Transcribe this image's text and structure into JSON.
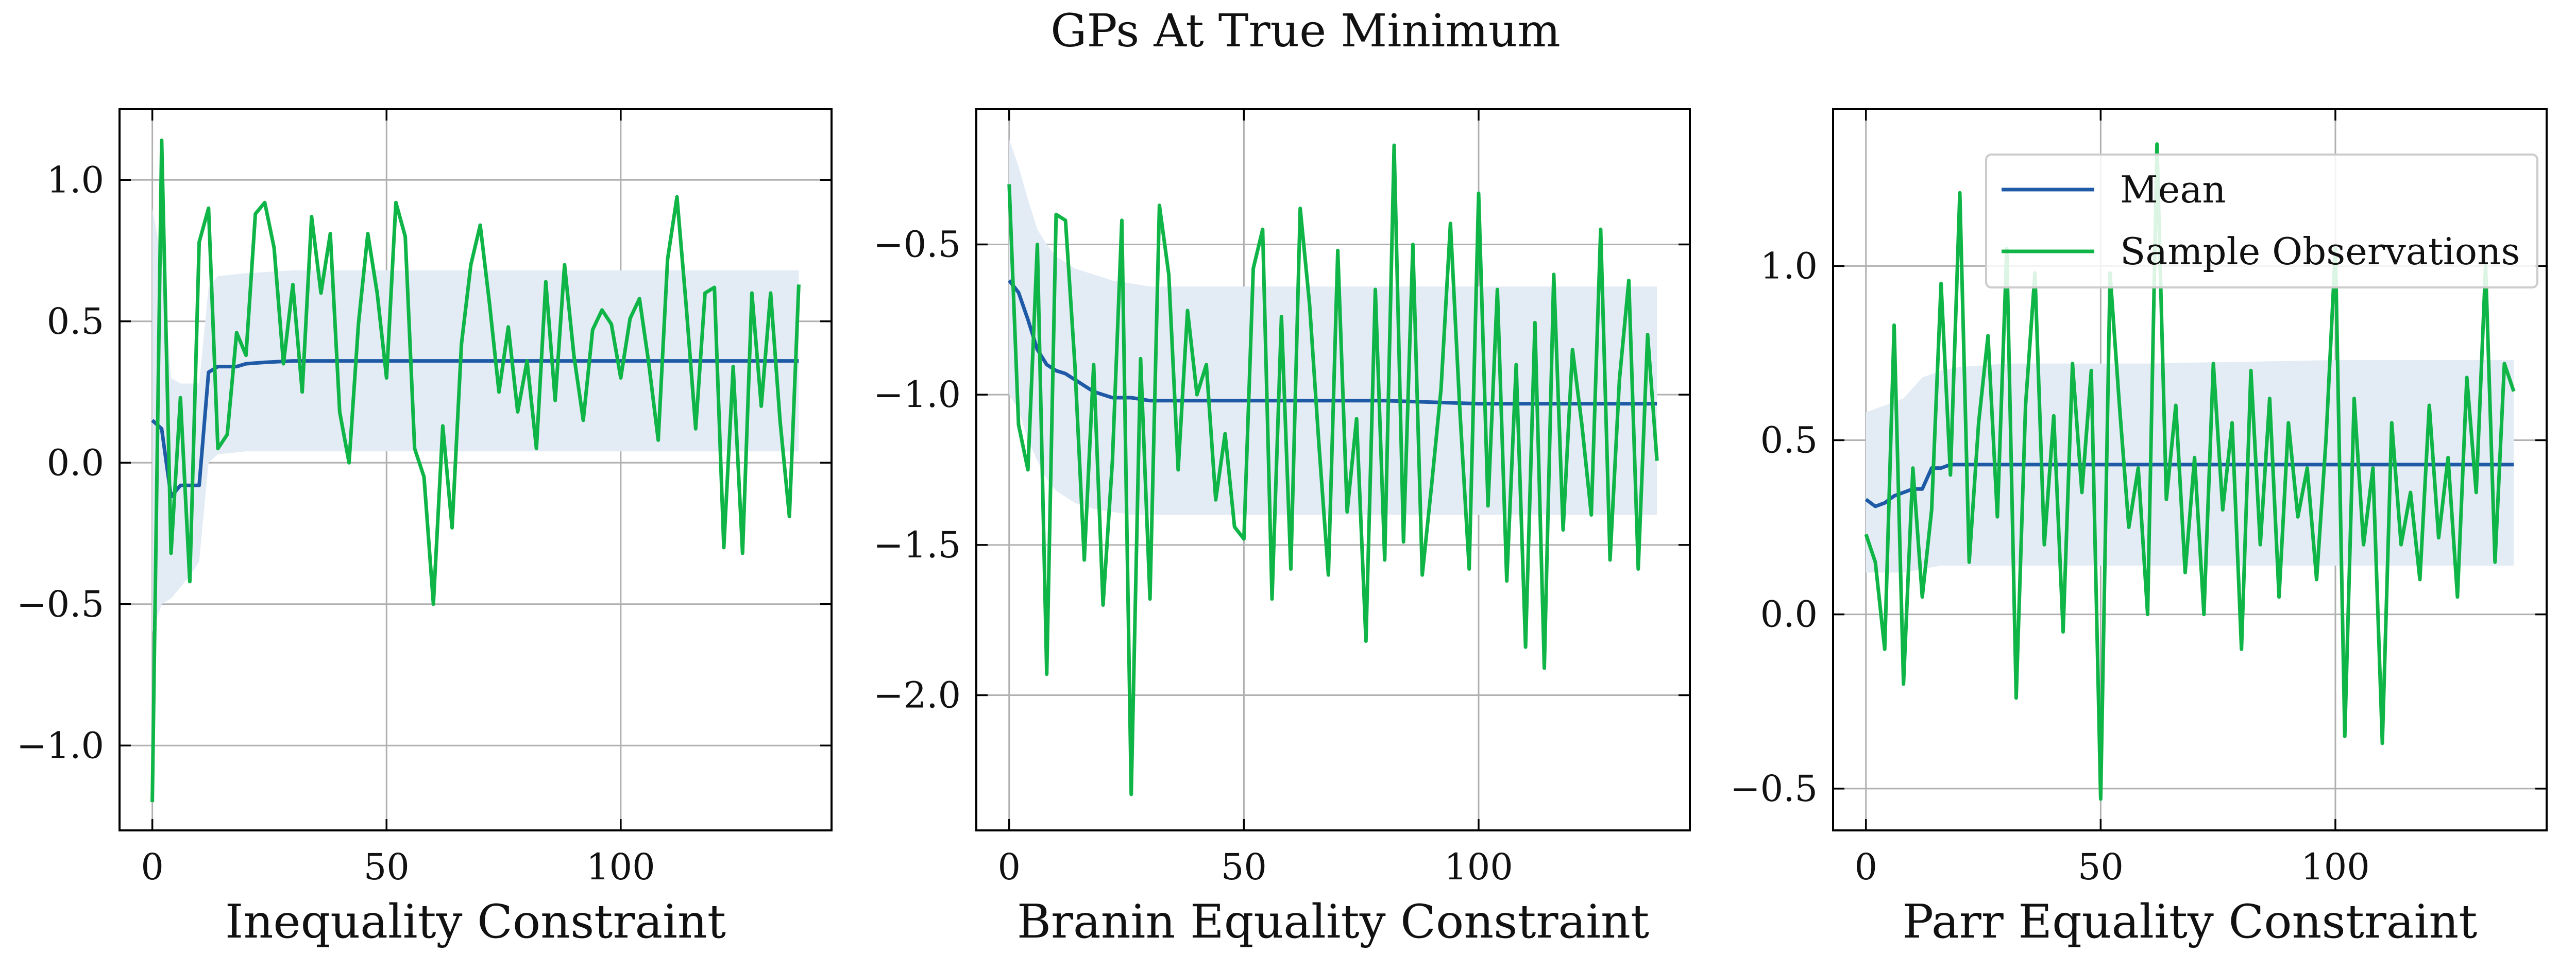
{
  "figure": {
    "title": "GPs At True Minimum"
  },
  "legend": {
    "entries": [
      "Mean",
      "Sample Observations"
    ],
    "placement": "upper-right of third panel"
  },
  "colors": {
    "mean": "#1f5aa6",
    "samples": "#10b547",
    "band": "#e3ecf5",
    "grid": "#b0b0b0",
    "axis": "#000000"
  },
  "chart_data": [
    {
      "type": "line",
      "xlabel": "Inequality Constraint",
      "xlim": [
        -7,
        145
      ],
      "ylim": [
        -1.3,
        1.25
      ],
      "xticks": [
        0,
        50,
        100
      ],
      "yticks": [
        -1.0,
        -0.5,
        0.0,
        0.5,
        1.0
      ],
      "ytick_labels": [
        "−1.0",
        "−0.5",
        "0.0",
        "0.5",
        "1.0"
      ],
      "grid": true,
      "series": [
        {
          "name": "Sample Observations",
          "x": [
            0,
            2,
            4,
            6,
            8,
            10,
            12,
            14,
            16,
            18,
            20,
            22,
            24,
            26,
            28,
            30,
            32,
            34,
            36,
            38,
            40,
            42,
            44,
            46,
            48,
            50,
            52,
            54,
            56,
            58,
            60,
            62,
            64,
            66,
            68,
            70,
            72,
            74,
            76,
            78,
            80,
            82,
            84,
            86,
            88,
            90,
            92,
            94,
            96,
            98,
            100,
            102,
            104,
            106,
            108,
            110,
            112,
            114,
            116,
            118,
            120,
            122,
            124,
            126,
            128,
            130,
            132,
            134,
            136,
            138
          ],
          "y": [
            -1.2,
            1.14,
            -0.32,
            0.23,
            -0.42,
            0.78,
            0.9,
            0.05,
            0.1,
            0.46,
            0.38,
            0.88,
            0.92,
            0.76,
            0.35,
            0.63,
            0.25,
            0.87,
            0.6,
            0.81,
            0.18,
            0.0,
            0.49,
            0.81,
            0.6,
            0.3,
            0.92,
            0.8,
            0.05,
            -0.05,
            -0.5,
            0.13,
            -0.23,
            0.42,
            0.7,
            0.84,
            0.56,
            0.25,
            0.48,
            0.18,
            0.36,
            0.05,
            0.64,
            0.22,
            0.7,
            0.38,
            0.15,
            0.47,
            0.54,
            0.49,
            0.3,
            0.51,
            0.58,
            0.35,
            0.08,
            0.72,
            0.94,
            0.55,
            0.12,
            0.6,
            0.62,
            -0.3,
            0.34,
            -0.32,
            0.6,
            0.2,
            0.6,
            0.15,
            -0.19,
            0.63
          ]
        },
        {
          "name": "Mean",
          "x": [
            0,
            2,
            4,
            6,
            8,
            10,
            12,
            14,
            16,
            18,
            20,
            24,
            30,
            40,
            60,
            80,
            100,
            120,
            138
          ],
          "y": [
            0.15,
            0.12,
            -0.12,
            -0.08,
            -0.08,
            -0.08,
            0.32,
            0.34,
            0.34,
            0.34,
            0.35,
            0.355,
            0.36,
            0.36,
            0.36,
            0.36,
            0.36,
            0.36,
            0.36
          ]
        }
      ],
      "band": {
        "x": [
          0,
          2,
          4,
          6,
          8,
          10,
          12,
          14,
          20,
          30,
          60,
          100,
          138
        ],
        "lower": [
          -0.6,
          -0.5,
          -0.48,
          -0.44,
          -0.4,
          -0.35,
          0.0,
          0.03,
          0.04,
          0.04,
          0.04,
          0.04,
          0.04
        ],
        "upper": [
          0.9,
          0.72,
          0.3,
          0.28,
          0.28,
          0.28,
          0.62,
          0.66,
          0.67,
          0.68,
          0.68,
          0.68,
          0.68
        ]
      }
    },
    {
      "type": "line",
      "xlabel": "Branin Equality Constraint",
      "xlim": [
        -7,
        145
      ],
      "ylim": [
        -2.45,
        -0.05
      ],
      "xticks": [
        0,
        50,
        100
      ],
      "yticks": [
        -2.0,
        -1.5,
        -1.0,
        -0.5
      ],
      "ytick_labels": [
        "−2.0",
        "−1.5",
        "−1.0",
        "−0.5"
      ],
      "grid": true,
      "series": [
        {
          "name": "Sample Observations",
          "x": [
            0,
            2,
            4,
            6,
            8,
            10,
            12,
            14,
            16,
            18,
            20,
            22,
            24,
            26,
            28,
            30,
            32,
            34,
            36,
            38,
            40,
            42,
            44,
            46,
            48,
            50,
            52,
            54,
            56,
            58,
            60,
            62,
            64,
            66,
            68,
            70,
            72,
            74,
            76,
            78,
            80,
            82,
            84,
            86,
            88,
            90,
            92,
            94,
            96,
            98,
            100,
            102,
            104,
            106,
            108,
            110,
            112,
            114,
            116,
            118,
            120,
            122,
            124,
            126,
            128,
            130,
            132,
            134,
            136,
            138
          ],
          "y": [
            -0.3,
            -1.1,
            -1.25,
            -0.5,
            -1.93,
            -0.4,
            -0.42,
            -0.9,
            -1.55,
            -0.9,
            -1.7,
            -1.22,
            -0.42,
            -2.33,
            -0.88,
            -1.68,
            -0.37,
            -0.6,
            -1.25,
            -0.72,
            -1.0,
            -0.9,
            -1.35,
            -1.13,
            -1.44,
            -1.48,
            -0.58,
            -0.45,
            -1.68,
            -0.74,
            -1.58,
            -0.38,
            -0.7,
            -1.17,
            -1.6,
            -0.52,
            -1.39,
            -1.08,
            -1.82,
            -0.65,
            -1.55,
            -0.17,
            -1.49,
            -0.5,
            -1.6,
            -1.3,
            -0.98,
            -0.43,
            -1.05,
            -1.58,
            -0.33,
            -1.37,
            -0.65,
            -1.62,
            -0.9,
            -1.84,
            -0.76,
            -1.91,
            -0.6,
            -1.45,
            -0.85,
            -1.1,
            -1.4,
            -0.45,
            -1.55,
            -0.95,
            -0.62,
            -1.58,
            -0.8,
            -1.22
          ]
        },
        {
          "name": "Mean",
          "x": [
            0,
            2,
            4,
            6,
            8,
            10,
            12,
            14,
            16,
            18,
            20,
            22,
            26,
            30,
            40,
            60,
            80,
            100,
            120,
            138
          ],
          "y": [
            -0.62,
            -0.66,
            -0.75,
            -0.85,
            -0.9,
            -0.92,
            -0.93,
            -0.95,
            -0.97,
            -0.99,
            -1.0,
            -1.01,
            -1.01,
            -1.02,
            -1.02,
            -1.02,
            -1.02,
            -1.03,
            -1.03,
            -1.03
          ]
        }
      ],
      "band": {
        "x": [
          0,
          2,
          4,
          6,
          8,
          10,
          14,
          18,
          22,
          26,
          30,
          40,
          60,
          100,
          138
        ],
        "lower": [
          -1.0,
          -1.05,
          -1.15,
          -1.22,
          -1.28,
          -1.32,
          -1.36,
          -1.38,
          -1.39,
          -1.4,
          -1.4,
          -1.4,
          -1.4,
          -1.4,
          -1.4
        ],
        "upper": [
          -0.15,
          -0.24,
          -0.35,
          -0.45,
          -0.5,
          -0.54,
          -0.58,
          -0.6,
          -0.62,
          -0.63,
          -0.64,
          -0.64,
          -0.64,
          -0.64,
          -0.64
        ]
      }
    },
    {
      "type": "line",
      "xlabel": "Parr Equality Constraint",
      "xlim": [
        -7,
        145
      ],
      "ylim": [
        -0.62,
        1.45
      ],
      "xticks": [
        0,
        50,
        100
      ],
      "yticks": [
        -0.5,
        0.0,
        0.5,
        1.0
      ],
      "ytick_labels": [
        "−0.5",
        "0.0",
        "0.5",
        "1.0"
      ],
      "grid": true,
      "series": [
        {
          "name": "Sample Observations",
          "x": [
            0,
            2,
            4,
            6,
            8,
            10,
            12,
            14,
            16,
            18,
            20,
            22,
            24,
            26,
            28,
            30,
            32,
            34,
            36,
            38,
            40,
            42,
            44,
            46,
            48,
            50,
            52,
            54,
            56,
            58,
            60,
            62,
            64,
            66,
            68,
            70,
            72,
            74,
            76,
            78,
            80,
            82,
            84,
            86,
            88,
            90,
            92,
            94,
            96,
            98,
            100,
            102,
            104,
            106,
            108,
            110,
            112,
            114,
            116,
            118,
            120,
            122,
            124,
            126,
            128,
            130,
            132,
            134,
            136,
            138
          ],
          "y": [
            0.23,
            0.15,
            -0.1,
            0.83,
            -0.2,
            0.42,
            0.05,
            0.3,
            0.95,
            0.4,
            1.21,
            0.15,
            0.55,
            0.8,
            0.28,
            1.05,
            -0.24,
            0.6,
            0.98,
            0.2,
            0.57,
            -0.05,
            0.72,
            0.35,
            0.7,
            -0.53,
            0.98,
            0.6,
            0.25,
            0.42,
            0.0,
            1.35,
            0.33,
            0.6,
            0.12,
            0.45,
            0.0,
            0.72,
            0.3,
            0.55,
            -0.1,
            0.7,
            0.2,
            0.62,
            0.05,
            0.55,
            0.28,
            0.42,
            0.1,
            0.5,
            1.05,
            -0.35,
            0.62,
            0.2,
            0.42,
            -0.37,
            0.55,
            0.2,
            0.35,
            0.1,
            0.6,
            0.22,
            0.45,
            0.05,
            0.68,
            0.35,
            1.0,
            0.15,
            0.72,
            0.64
          ]
        },
        {
          "name": "Mean",
          "x": [
            0,
            2,
            4,
            6,
            8,
            10,
            12,
            14,
            16,
            18,
            20,
            24,
            30,
            40,
            60,
            80,
            100,
            120,
            138
          ],
          "y": [
            0.33,
            0.31,
            0.32,
            0.34,
            0.35,
            0.36,
            0.36,
            0.42,
            0.42,
            0.43,
            0.43,
            0.43,
            0.43,
            0.43,
            0.43,
            0.43,
            0.43,
            0.43,
            0.43
          ]
        }
      ],
      "band": {
        "x": [
          0,
          4,
          8,
          12,
          16,
          20,
          30,
          60,
          100,
          138
        ],
        "lower": [
          0.12,
          0.12,
          0.12,
          0.13,
          0.14,
          0.14,
          0.14,
          0.14,
          0.14,
          0.14
        ],
        "upper": [
          0.58,
          0.6,
          0.62,
          0.68,
          0.7,
          0.71,
          0.72,
          0.72,
          0.73,
          0.73
        ]
      }
    }
  ]
}
